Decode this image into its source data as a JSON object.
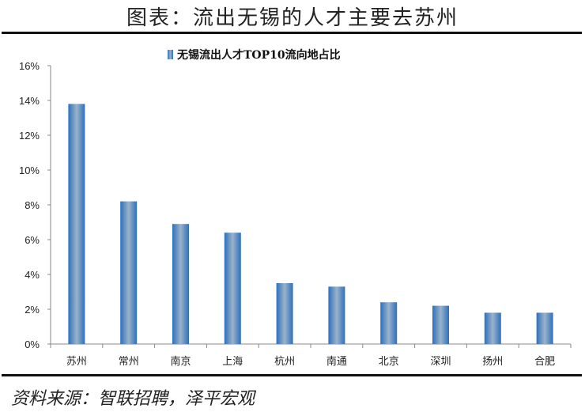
{
  "header": {
    "title": "图表：流出无锡的人才主要去苏州"
  },
  "footer": {
    "source": "资料来源：智联招聘，泽平宏观"
  },
  "chart_data": {
    "type": "bar",
    "title": "",
    "legend": {
      "entries": [
        "无锡流出人才TOP10流向地占比"
      ],
      "placement": "top"
    },
    "categories": [
      "苏州",
      "常州",
      "南京",
      "上海",
      "杭州",
      "南通",
      "北京",
      "深圳",
      "扬州",
      "合肥"
    ],
    "series": [
      {
        "name": "无锡流出人才TOP10流向地占比",
        "values": [
          13.8,
          8.2,
          6.9,
          6.4,
          3.5,
          3.3,
          2.4,
          2.2,
          1.8,
          1.8
        ]
      }
    ],
    "ylim": [
      0,
      16
    ],
    "yticks": [
      "0%",
      "2%",
      "4%",
      "6%",
      "8%",
      "10%",
      "12%",
      "14%",
      "16%"
    ],
    "grid": false,
    "colors": {
      "bar": "#2e6fbd",
      "bar_light": "#9ab3c9"
    }
  }
}
